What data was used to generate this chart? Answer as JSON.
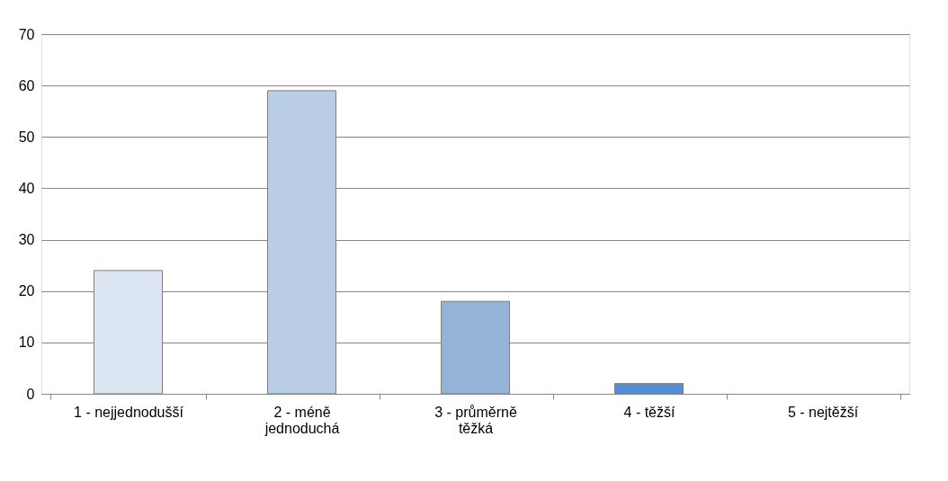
{
  "chart_data": {
    "type": "bar",
    "categories": [
      "1 - nejjednodušší",
      "2 - méně jednoduchá",
      "3 - průměrně těžká",
      "4 - těžší",
      "5 - nejtěžší"
    ],
    "values": [
      24,
      59,
      18,
      2,
      0
    ],
    "colors": [
      "#dce6f2",
      "#b9cde5",
      "#95b3d7",
      "#558ed5",
      null
    ],
    "ylim": [
      0,
      70
    ],
    "yticks": [
      0,
      10,
      20,
      30,
      40,
      50,
      60,
      70
    ],
    "grid": "y"
  }
}
